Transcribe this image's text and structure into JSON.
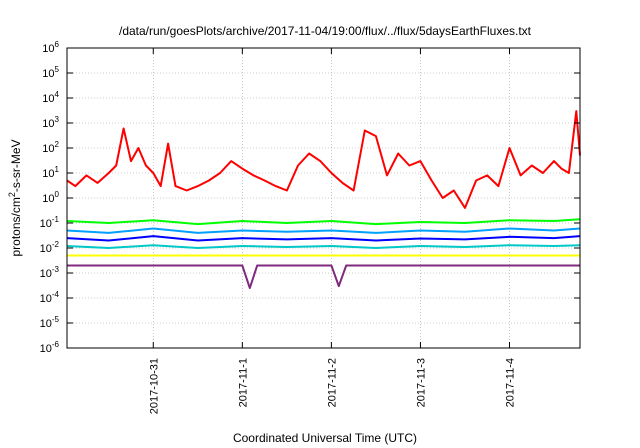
{
  "chart_data": {
    "type": "line",
    "title": "/data/run/goesPlots/archive/2017-11-04/19:00/flux/../flux/5daysEarthFluxes.txt",
    "xlabel": "Coordinated Universal Time (UTC)",
    "ylabel": {
      "pre": "protons/cm",
      "sup": "2",
      "post": "-s-sr-MeV"
    },
    "log_y": true,
    "grid": true,
    "legend": "none",
    "x_range_days": [
      "2017-10-30 00:45",
      "2017-11-04 19:00"
    ],
    "ylim": [
      1e-06,
      1000000.0
    ],
    "y_ticks": [
      {
        "base": "10",
        "exp": "-6",
        "value": 1e-06
      },
      {
        "base": "10",
        "exp": "-5",
        "value": 1e-05
      },
      {
        "base": "10",
        "exp": "-4",
        "value": 0.0001
      },
      {
        "base": "10",
        "exp": "-3",
        "value": 0.001
      },
      {
        "base": "10",
        "exp": "-2",
        "value": 0.01
      },
      {
        "base": "10",
        "exp": "-1",
        "value": 0.1
      },
      {
        "base": "10",
        "exp": "0",
        "value": 1
      },
      {
        "base": "10",
        "exp": "1",
        "value": 10
      },
      {
        "base": "10",
        "exp": "2",
        "value": 100
      },
      {
        "base": "10",
        "exp": "3",
        "value": 1000
      },
      {
        "base": "10",
        "exp": "4",
        "value": 10000
      },
      {
        "base": "10",
        "exp": "5",
        "value": 100000
      },
      {
        "base": "10",
        "exp": "6",
        "value": 1000000
      }
    ],
    "x_ticks": [
      {
        "label": "2017-10-31",
        "date": "2017-10-31"
      },
      {
        "label": "2017-11-1",
        "date": "2017-11-01"
      },
      {
        "label": "2017-11-2",
        "date": "2017-11-02"
      },
      {
        "label": "2017-11-3",
        "date": "2017-11-03"
      },
      {
        "label": "2017-11-4",
        "date": "2017-11-04"
      }
    ],
    "series": [
      {
        "color": "#ff0000",
        "x": [
          "2017-10-30 00:45",
          "2017-10-30 03:00",
          "2017-10-30 06:00",
          "2017-10-30 09:00",
          "2017-10-30 12:00",
          "2017-10-30 14:00",
          "2017-10-30 16:00",
          "2017-10-30 18:00",
          "2017-10-30 20:00",
          "2017-10-30 22:00",
          "2017-10-31 00:00",
          "2017-10-31 02:00",
          "2017-10-31 04:00",
          "2017-10-31 06:00",
          "2017-10-31 09:00",
          "2017-10-31 12:00",
          "2017-10-31 15:00",
          "2017-10-31 18:00",
          "2017-10-31 21:00",
          "2017-11-01 00:00",
          "2017-11-01 03:00",
          "2017-11-01 06:00",
          "2017-11-01 09:00",
          "2017-11-01 12:00",
          "2017-11-01 15:00",
          "2017-11-01 18:00",
          "2017-11-01 21:00",
          "2017-11-02 00:00",
          "2017-11-02 03:00",
          "2017-11-02 06:00",
          "2017-11-02 09:00",
          "2017-11-02 12:00",
          "2017-11-02 15:00",
          "2017-11-02 18:00",
          "2017-11-02 21:00",
          "2017-11-03 00:00",
          "2017-11-03 03:00",
          "2017-11-03 06:00",
          "2017-11-03 09:00",
          "2017-11-03 12:00",
          "2017-11-03 15:00",
          "2017-11-03 18:00",
          "2017-11-03 21:00",
          "2017-11-04 00:00",
          "2017-11-04 03:00",
          "2017-11-04 06:00",
          "2017-11-04 09:00",
          "2017-11-04 12:00",
          "2017-11-04 14:00",
          "2017-11-04 16:00",
          "2017-11-04 18:00",
          "2017-11-04 19:00"
        ],
        "values": [
          5,
          3,
          8,
          4,
          10,
          20,
          600,
          30,
          100,
          20,
          10,
          3,
          150,
          3,
          2,
          3,
          5,
          10,
          30,
          15,
          8,
          5,
          3,
          2,
          20,
          60,
          30,
          10,
          4,
          2,
          500,
          300,
          8,
          60,
          20,
          30,
          5,
          1,
          2,
          0.4,
          5,
          8,
          3,
          100,
          8,
          20,
          10,
          30,
          15,
          10,
          3000,
          50
        ]
      },
      {
        "color": "#00ff00",
        "x": [
          "2017-10-30 00:45",
          "2017-10-30 12:00",
          "2017-10-31 00:00",
          "2017-10-31 12:00",
          "2017-11-01 00:00",
          "2017-11-01 12:00",
          "2017-11-02 00:00",
          "2017-11-02 12:00",
          "2017-11-03 00:00",
          "2017-11-03 12:00",
          "2017-11-04 00:00",
          "2017-11-04 12:00",
          "2017-11-04 19:00"
        ],
        "values": [
          0.12,
          0.1,
          0.13,
          0.09,
          0.12,
          0.1,
          0.12,
          0.09,
          0.11,
          0.1,
          0.13,
          0.12,
          0.14
        ]
      },
      {
        "color": "#00a0ff",
        "x": [
          "2017-10-30 00:45",
          "2017-10-30 12:00",
          "2017-10-31 00:00",
          "2017-10-31 12:00",
          "2017-11-01 00:00",
          "2017-11-01 12:00",
          "2017-11-02 00:00",
          "2017-11-02 12:00",
          "2017-11-03 00:00",
          "2017-11-03 12:00",
          "2017-11-04 00:00",
          "2017-11-04 12:00",
          "2017-11-04 19:00"
        ],
        "values": [
          0.05,
          0.04,
          0.06,
          0.04,
          0.05,
          0.045,
          0.05,
          0.04,
          0.05,
          0.045,
          0.06,
          0.05,
          0.06
        ]
      },
      {
        "color": "#0000ff",
        "x": [
          "2017-10-30 00:45",
          "2017-10-30 12:00",
          "2017-10-31 00:00",
          "2017-10-31 12:00",
          "2017-11-01 00:00",
          "2017-11-01 12:00",
          "2017-11-02 00:00",
          "2017-11-02 12:00",
          "2017-11-03 00:00",
          "2017-11-03 12:00",
          "2017-11-04 00:00",
          "2017-11-04 12:00",
          "2017-11-04 19:00"
        ],
        "values": [
          0.025,
          0.02,
          0.03,
          0.02,
          0.025,
          0.022,
          0.025,
          0.02,
          0.024,
          0.022,
          0.028,
          0.025,
          0.03
        ]
      },
      {
        "color": "#00c8c8",
        "x": [
          "2017-10-30 00:45",
          "2017-10-30 12:00",
          "2017-10-31 00:00",
          "2017-10-31 12:00",
          "2017-11-01 00:00",
          "2017-11-01 12:00",
          "2017-11-02 00:00",
          "2017-11-02 12:00",
          "2017-11-03 00:00",
          "2017-11-03 12:00",
          "2017-11-04 00:00",
          "2017-11-04 12:00",
          "2017-11-04 19:00"
        ],
        "values": [
          0.012,
          0.01,
          0.013,
          0.01,
          0.012,
          0.011,
          0.012,
          0.01,
          0.012,
          0.011,
          0.013,
          0.012,
          0.013
        ]
      },
      {
        "color": "#ffff00",
        "x": [
          "2017-10-30 00:45",
          "2017-10-30 12:00",
          "2017-10-31 00:00",
          "2017-10-31 12:00",
          "2017-11-01 00:00",
          "2017-11-01 12:00",
          "2017-11-02 00:00",
          "2017-11-02 12:00",
          "2017-11-03 00:00",
          "2017-11-03 12:00",
          "2017-11-04 00:00",
          "2017-11-04 12:00",
          "2017-11-04 19:00"
        ],
        "values": [
          0.005,
          0.005,
          0.005,
          0.005,
          0.005,
          0.005,
          0.005,
          0.005,
          0.005,
          0.005,
          0.005,
          0.005,
          0.005
        ]
      },
      {
        "color": "#7f2a7f",
        "x": [
          "2017-10-30 00:45",
          "2017-10-30 12:00",
          "2017-10-31 00:00",
          "2017-10-31 12:00",
          "2017-11-01 00:00",
          "2017-11-01 02:00",
          "2017-11-01 04:00",
          "2017-11-01 12:00",
          "2017-11-02 00:00",
          "2017-11-02 02:00",
          "2017-11-02 04:00",
          "2017-11-02 12:00",
          "2017-11-03 00:00",
          "2017-11-03 12:00",
          "2017-11-04 00:00",
          "2017-11-04 12:00",
          "2017-11-04 19:00"
        ],
        "values": [
          0.002,
          0.002,
          0.002,
          0.002,
          0.002,
          0.00025,
          0.002,
          0.002,
          0.002,
          0.0003,
          0.002,
          0.002,
          0.002,
          0.002,
          0.002,
          0.002,
          0.002
        ]
      }
    ]
  }
}
